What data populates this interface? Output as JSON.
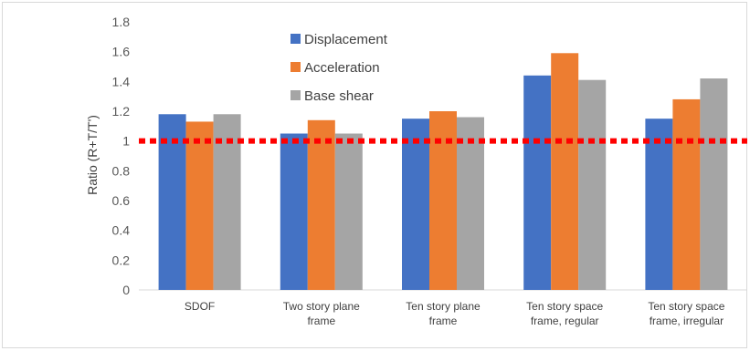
{
  "chart_data": {
    "type": "bar",
    "categories": [
      "SDOF",
      "Two story plane frame",
      "Ten story plane frame",
      "Ten story space frame, regular",
      "Ten story space frame, irregular"
    ],
    "category_lines": [
      [
        "SDOF"
      ],
      [
        "Two story plane",
        "frame"
      ],
      [
        "Ten story plane",
        "frame"
      ],
      [
        "Ten story space",
        "frame, regular"
      ],
      [
        "Ten story space",
        "frame, irregular"
      ]
    ],
    "series": [
      {
        "name": "Displacement",
        "values": [
          1.18,
          1.05,
          1.15,
          1.44,
          1.15
        ],
        "color": "#4472c4"
      },
      {
        "name": "Acceleration",
        "values": [
          1.13,
          1.14,
          1.2,
          1.59,
          1.28
        ],
        "color": "#ed7d31"
      },
      {
        "name": "Base shear",
        "values": [
          1.18,
          1.05,
          1.16,
          1.41,
          1.42
        ],
        "color": "#a5a5a5"
      }
    ],
    "ylabel": "Ratio   (R+T/T')",
    "xlabel": "",
    "title": "",
    "ylim": [
      0,
      1.8
    ],
    "yticks": [
      0,
      0.2,
      0.4,
      0.6,
      0.8,
      1,
      1.2,
      1.4,
      1.6,
      1.8
    ],
    "reference_line": {
      "y": 1,
      "color": "#ff0000",
      "style": "dotted"
    },
    "gridlines": false,
    "legend_position": "top-center"
  }
}
